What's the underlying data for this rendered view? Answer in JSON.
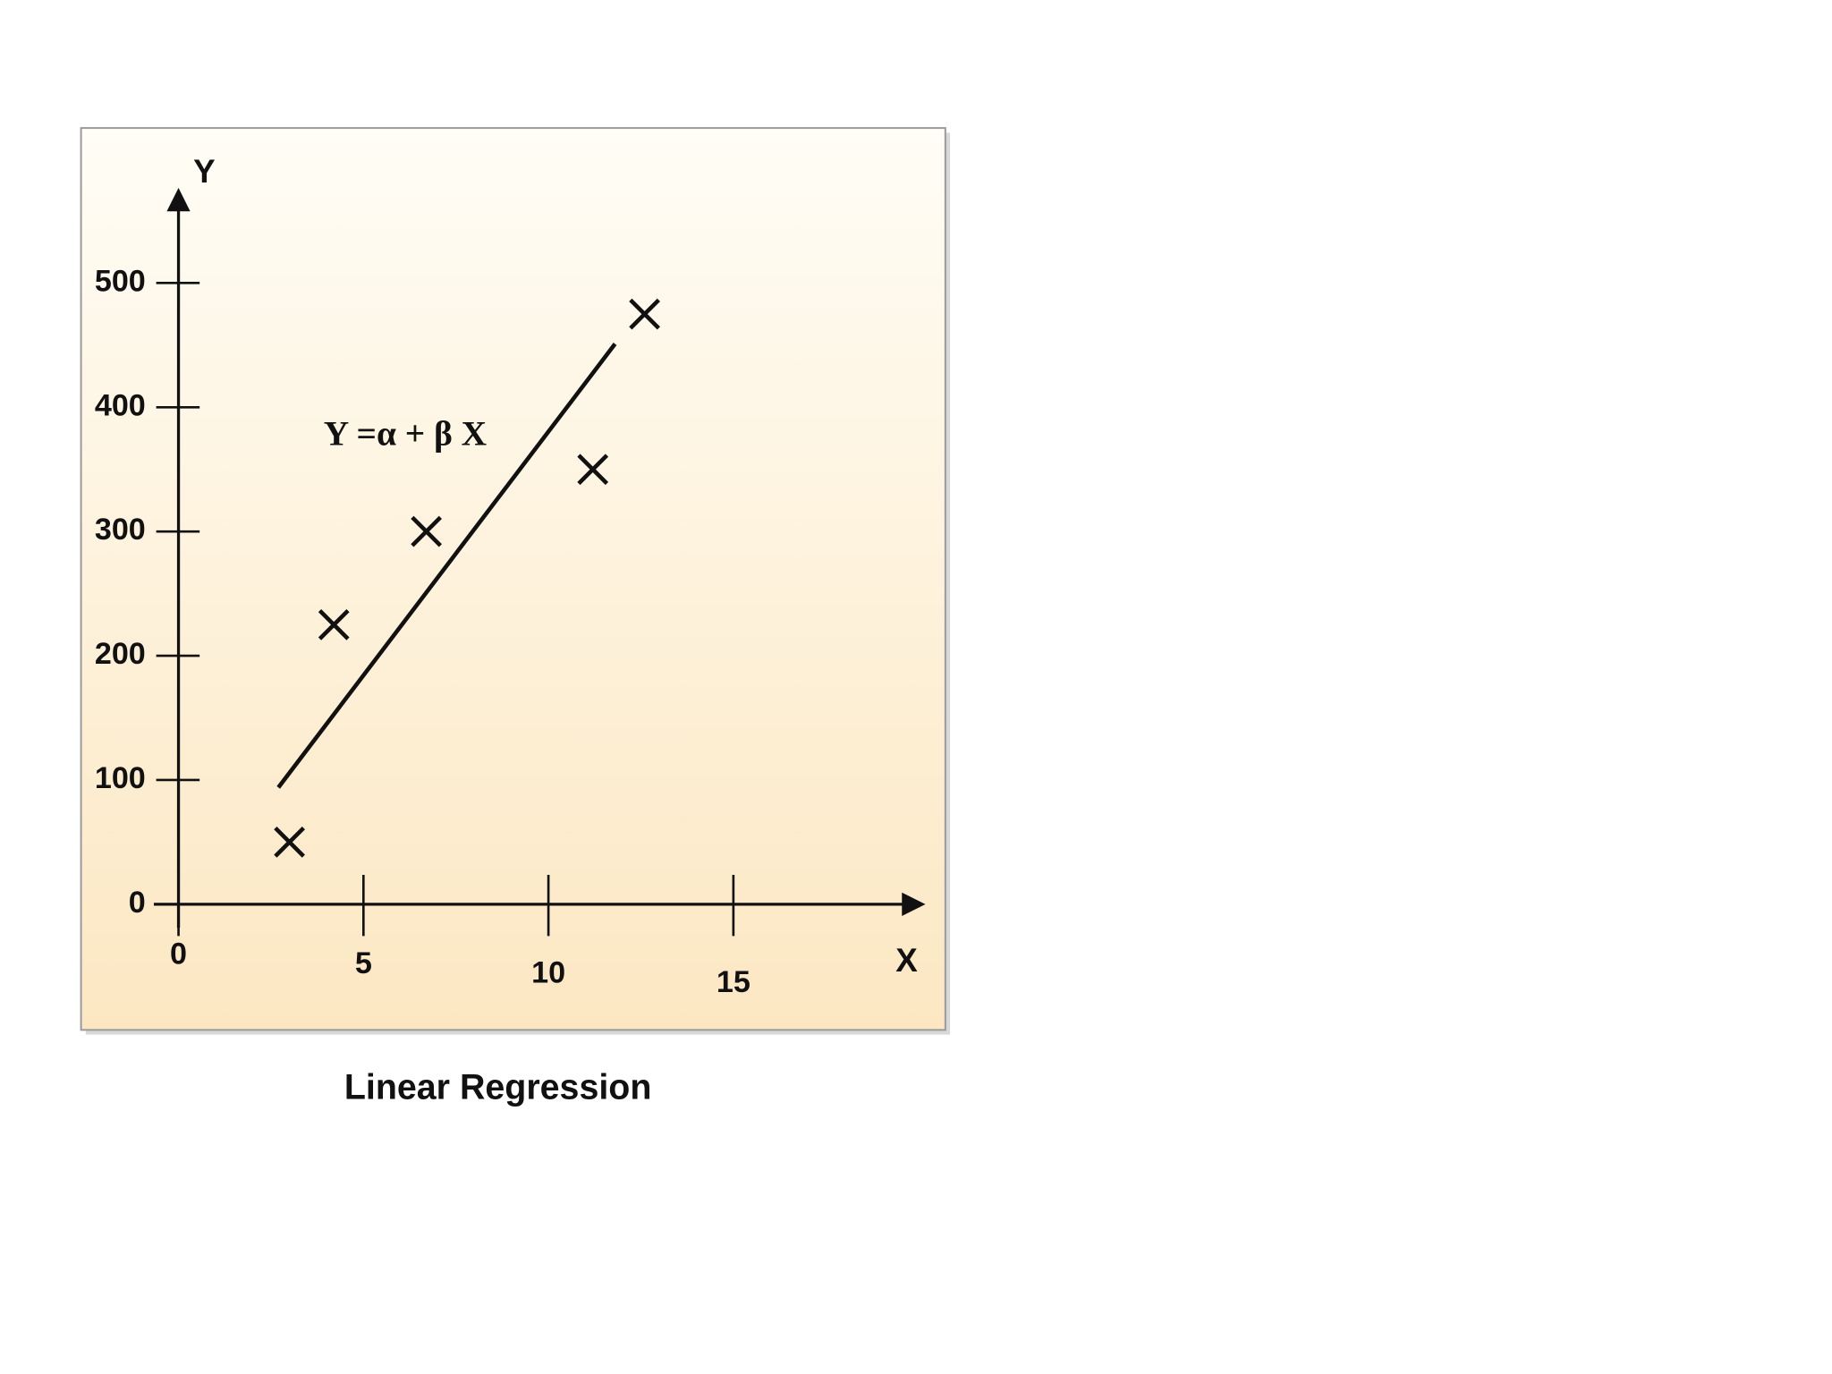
{
  "chart_data": {
    "type": "scatter",
    "title": "Linear Regression",
    "x_label": "X",
    "y_label": "Y",
    "annotation": "Y =α + β X",
    "x": [
      3,
      4.2,
      6.7,
      11.2,
      12.6
    ],
    "values": [
      50,
      225,
      300,
      350,
      475
    ],
    "color": "#111111",
    "line": {
      "x": [
        2.7,
        11.8
      ],
      "y": [
        94,
        451
      ]
    },
    "xlim": [
      0,
      20
    ],
    "ylim": [
      0,
      560
    ],
    "xticks": [
      0,
      5,
      10,
      15
    ],
    "yticks": [
      0,
      100,
      200,
      300,
      400,
      500
    ]
  }
}
